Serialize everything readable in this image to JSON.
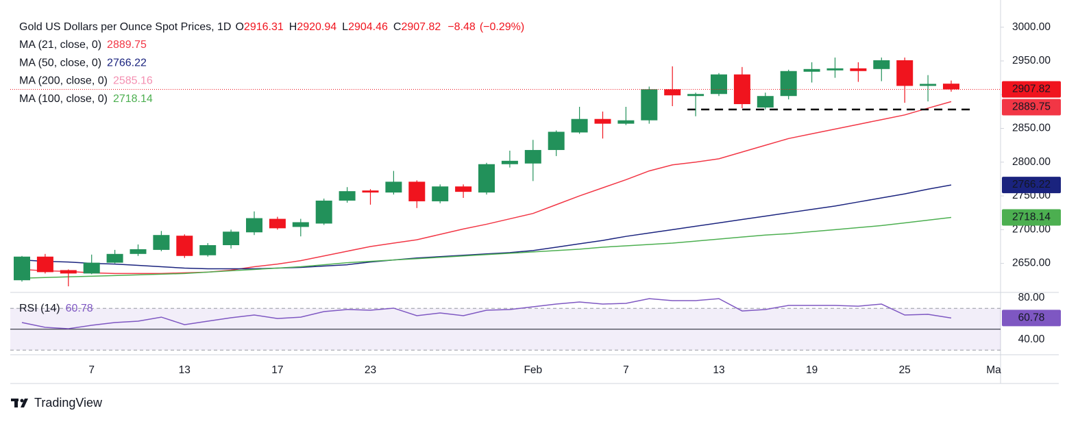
{
  "chart_data": {
    "type": "candlestick",
    "title": "Gold US Dollars per Ounce Spot Prices, 1D",
    "ohlc": [
      {
        "label": "O",
        "value": 2916.31
      },
      {
        "label": "H",
        "value": 2920.94
      },
      {
        "label": "L",
        "value": 2904.46
      },
      {
        "label": "C",
        "value": 2907.82
      }
    ],
    "change": {
      "value": -8.48,
      "label": "−8.48"
    },
    "change_pct": {
      "value": -0.29,
      "label": "(−0.29%)"
    },
    "categories": [
      null,
      null,
      null,
      "7",
      null,
      null,
      null,
      "13",
      null,
      null,
      null,
      "17",
      null,
      null,
      null,
      "23",
      null,
      null,
      null,
      null,
      null,
      null,
      "Feb",
      null,
      null,
      null,
      "7",
      null,
      null,
      null,
      "13",
      null,
      null,
      null,
      "19",
      null,
      null,
      null,
      "25",
      null,
      null
    ],
    "next_label": "Ma",
    "up_color": "#22915a",
    "down_color": "#f0141e",
    "candles": {
      "open": [
        2625,
        2660,
        2640,
        2635,
        2651,
        2664,
        2670,
        2691,
        2662,
        2677,
        2696,
        2716,
        2704,
        2709,
        2743,
        2758,
        2755,
        2771,
        2742,
        2764,
        2755,
        2797,
        2798,
        2818,
        2844,
        2864,
        2857,
        2862,
        2908,
        2898,
        2901,
        2930,
        2881,
        2898,
        2934,
        2936,
        2939,
        2938,
        2951,
        2913,
        2916.31
      ],
      "high": [
        2661,
        2664,
        2641,
        2663,
        2670,
        2678,
        2698,
        2693,
        2680,
        2700,
        2727,
        2719,
        2716,
        2746,
        2763,
        2760,
        2787,
        2773,
        2767,
        2767,
        2799,
        2817,
        2833,
        2847,
        2882,
        2875,
        2882,
        2912,
        2942,
        2903,
        2932,
        2941,
        2903,
        2937,
        2948,
        2955,
        2948,
        2955,
        2955,
        2929,
        2920.94
      ],
      "low": [
        2623,
        2635,
        2616,
        2634,
        2650,
        2661,
        2668,
        2658,
        2660,
        2672,
        2692,
        2700,
        2690,
        2707,
        2740,
        2737,
        2752,
        2732,
        2739,
        2747,
        2752,
        2792,
        2772,
        2809,
        2842,
        2835,
        2855,
        2857,
        2883,
        2868,
        2898,
        2880,
        2878,
        2893,
        2918,
        2925,
        2919,
        2920,
        2888,
        2890,
        2904.46
      ],
      "close": [
        2660,
        2637,
        2635,
        2651,
        2664,
        2671,
        2692,
        2661,
        2677,
        2697,
        2717,
        2702,
        2711,
        2743,
        2757,
        2755,
        2771,
        2742,
        2764,
        2756,
        2797,
        2802,
        2818,
        2845,
        2864,
        2857,
        2862,
        2908,
        2899,
        2901,
        2930,
        2886,
        2898,
        2935,
        2938,
        2939,
        2935,
        2951,
        2913,
        2916,
        2907.82
      ]
    },
    "series": [
      {
        "name": "MA (21, close, 0)",
        "color": "#f23645",
        "values": [
          2641,
          2639,
          2638,
          2636,
          2635,
          2635,
          2635,
          2636,
          2637,
          2640,
          2645,
          2649,
          2654,
          2661,
          2668,
          2675,
          2680,
          2685,
          2693,
          2701,
          2708,
          2716,
          2724,
          2737,
          2750,
          2762,
          2774,
          2787,
          2796,
          2800,
          2805,
          2815,
          2825,
          2835,
          2842,
          2849,
          2856,
          2863,
          2870,
          2880,
          2889.75
        ]
      },
      {
        "name": "MA (50, close, 0)",
        "color": "#1a237e",
        "values": [
          2655,
          2653,
          2652,
          2650,
          2649,
          2647,
          2645,
          2643,
          2642,
          2642,
          2642,
          2643,
          2644,
          2646,
          2648,
          2652,
          2655,
          2658,
          2660,
          2662,
          2664,
          2666,
          2669,
          2674,
          2679,
          2684,
          2690,
          2695,
          2700,
          2705,
          2710,
          2715,
          2720,
          2725,
          2730,
          2735,
          2741,
          2747,
          2753,
          2760,
          2766.22
        ]
      },
      {
        "name": "MA (100, close, 0)",
        "color": "#4caf50",
        "values": [
          2628,
          2629,
          2630,
          2631,
          2632,
          2633,
          2634,
          2635,
          2637,
          2639,
          2641,
          2643,
          2645,
          2648,
          2651,
          2653,
          2655,
          2657,
          2659,
          2661,
          2663,
          2665,
          2667,
          2669,
          2671,
          2674,
          2676,
          2678,
          2680,
          2683,
          2686,
          2689,
          2692,
          2694,
          2697,
          2700,
          2703,
          2706,
          2710,
          2714,
          2718.14
        ]
      }
    ],
    "legend": [
      {
        "name": "MA (21, close, 0)",
        "value": 2889.75,
        "color": "#f23645"
      },
      {
        "name": "MA (50, close, 0)",
        "value": 2766.22,
        "color": "#1a237e"
      },
      {
        "name": "MA (200, close, 0)",
        "value": 2585.16,
        "color": "#f48fb1"
      },
      {
        "name": "MA (100, close, 0)",
        "value": 2718.14,
        "color": "#4caf50"
      }
    ],
    "support_level": 2878,
    "ylim": [
      2609,
      3020
    ],
    "yticks": [
      {
        "value": 3000,
        "label": "3000.00"
      },
      {
        "value": 2950,
        "label": "2950.00"
      },
      {
        "value": 2900,
        "label": "2900.00"
      },
      {
        "value": 2850,
        "label": "2850.00"
      },
      {
        "value": 2800,
        "label": "2800.00"
      },
      {
        "value": 2750,
        "label": "2750.00"
      },
      {
        "value": 2700,
        "label": "2700.00"
      },
      {
        "value": 2650,
        "label": "2650.00"
      }
    ],
    "rsi": {
      "name": "RSI (14)",
      "value": 60.78,
      "color": "#7e57c2",
      "values": [
        56.4,
        51.8,
        50.5,
        53.8,
        56.4,
        57.7,
        61.6,
        54.4,
        57.7,
        61,
        63.6,
        60.3,
        61.6,
        66.9,
        68.9,
        68.2,
        70.2,
        63,
        65.6,
        63,
        68.2,
        68.9,
        71.5,
        74.1,
        76.1,
        74.1,
        74.8,
        79.3,
        77.4,
        77.4,
        79.3,
        67.5,
        68.9,
        72.8,
        72.8,
        72.8,
        72.1,
        74.1,
        63.6,
        64.3,
        60.78
      ],
      "ylim": [
        25.6,
        84.6
      ],
      "bands": [
        30,
        70
      ],
      "midline": 50,
      "yticks": [
        {
          "value": 80,
          "label": "80.00"
        },
        {
          "value": 40,
          "label": "40.00"
        }
      ]
    }
  },
  "footer": {
    "brand": "TradingView"
  }
}
